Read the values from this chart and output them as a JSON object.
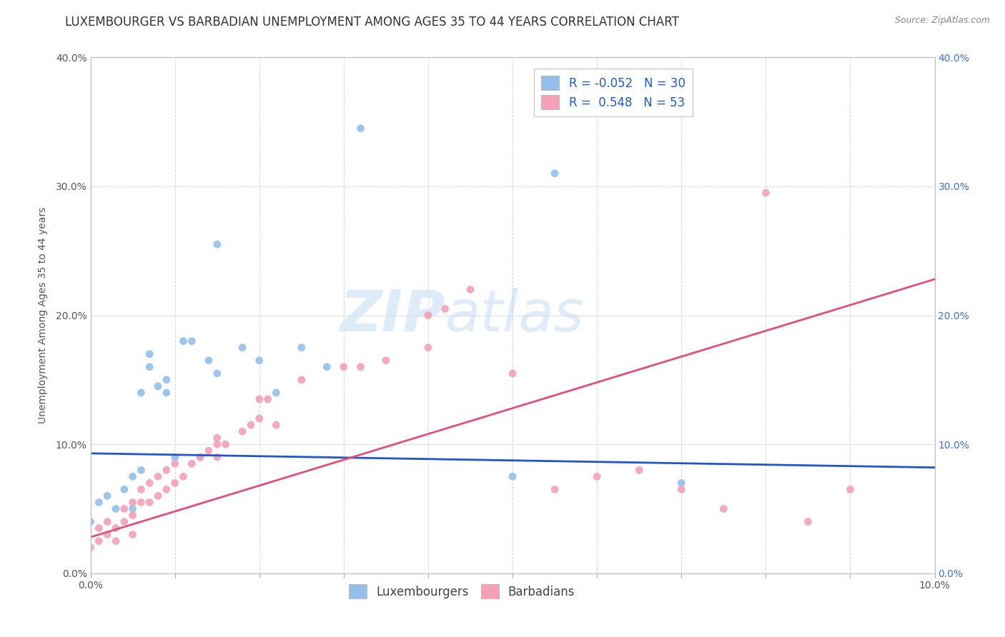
{
  "title": "LUXEMBOURGER VS BARBADIAN UNEMPLOYMENT AMONG AGES 35 TO 44 YEARS CORRELATION CHART",
  "source": "Source: ZipAtlas.com",
  "xlabel": "",
  "ylabel": "Unemployment Among Ages 35 to 44 years",
  "xlim": [
    0.0,
    0.1
  ],
  "ylim": [
    0.0,
    0.4
  ],
  "xticks": [
    0.0,
    0.01,
    0.02,
    0.03,
    0.04,
    0.05,
    0.06,
    0.07,
    0.08,
    0.09,
    0.1
  ],
  "xtick_labels_show": [
    "0.0%",
    "",
    "",
    "",
    "",
    "",
    "",
    "",
    "",
    "",
    "10.0%"
  ],
  "yticks": [
    0.0,
    0.1,
    0.2,
    0.3,
    0.4
  ],
  "ytick_labels_left": [
    "0.0%",
    "10.0%",
    "20.0%",
    "30.0%",
    "40.0%"
  ],
  "ytick_labels_right": [
    "0.0%",
    "10.0%",
    "20.0%",
    "30.0%",
    "40.0%"
  ],
  "lux_color": "#92c0e8",
  "bar_color": "#f4a0b8",
  "lux_line_color": "#2255cc",
  "bar_line_color": "#e0507a",
  "R_lux": -0.052,
  "N_lux": 30,
  "R_bar": 0.548,
  "N_bar": 53,
  "background_color": "#ffffff",
  "grid_color": "#cccccc",
  "watermark_zip": "ZIP",
  "watermark_atlas": "atlas",
  "lux_scatter_x": [
    0.0,
    0.001,
    0.002,
    0.003,
    0.004,
    0.005,
    0.005,
    0.006,
    0.006,
    0.007,
    0.007,
    0.008,
    0.009,
    0.009,
    0.01,
    0.011,
    0.012,
    0.013,
    0.014,
    0.015,
    0.015,
    0.018,
    0.02,
    0.022,
    0.025,
    0.028,
    0.032,
    0.05,
    0.055,
    0.07
  ],
  "lux_scatter_y": [
    0.04,
    0.055,
    0.06,
    0.05,
    0.065,
    0.05,
    0.075,
    0.08,
    0.14,
    0.16,
    0.17,
    0.145,
    0.14,
    0.15,
    0.09,
    0.18,
    0.18,
    0.09,
    0.165,
    0.155,
    0.255,
    0.175,
    0.165,
    0.14,
    0.175,
    0.16,
    0.345,
    0.075,
    0.31,
    0.07
  ],
  "bar_scatter_x": [
    0.0,
    0.001,
    0.001,
    0.002,
    0.002,
    0.003,
    0.003,
    0.004,
    0.004,
    0.005,
    0.005,
    0.005,
    0.006,
    0.006,
    0.007,
    0.007,
    0.008,
    0.008,
    0.009,
    0.009,
    0.01,
    0.01,
    0.011,
    0.012,
    0.013,
    0.014,
    0.015,
    0.015,
    0.015,
    0.016,
    0.018,
    0.019,
    0.02,
    0.02,
    0.021,
    0.022,
    0.025,
    0.03,
    0.032,
    0.035,
    0.04,
    0.04,
    0.042,
    0.045,
    0.05,
    0.055,
    0.06,
    0.065,
    0.07,
    0.075,
    0.08,
    0.085,
    0.09
  ],
  "bar_scatter_y": [
    0.02,
    0.025,
    0.035,
    0.03,
    0.04,
    0.025,
    0.035,
    0.04,
    0.05,
    0.03,
    0.045,
    0.055,
    0.055,
    0.065,
    0.055,
    0.07,
    0.06,
    0.075,
    0.065,
    0.08,
    0.07,
    0.085,
    0.075,
    0.085,
    0.09,
    0.095,
    0.09,
    0.1,
    0.105,
    0.1,
    0.11,
    0.115,
    0.12,
    0.135,
    0.135,
    0.115,
    0.15,
    0.16,
    0.16,
    0.165,
    0.175,
    0.2,
    0.205,
    0.22,
    0.155,
    0.065,
    0.075,
    0.08,
    0.065,
    0.05,
    0.295,
    0.04,
    0.065
  ],
  "lux_line_x0": 0.0,
  "lux_line_x1": 0.1,
  "lux_line_y0": 0.093,
  "lux_line_y1": 0.082,
  "bar_line_x0": 0.0,
  "bar_line_x1": 0.1,
  "bar_line_y0": 0.028,
  "bar_line_y1": 0.228,
  "title_fontsize": 12,
  "label_fontsize": 10,
  "tick_fontsize": 10,
  "legend_fontsize": 12
}
